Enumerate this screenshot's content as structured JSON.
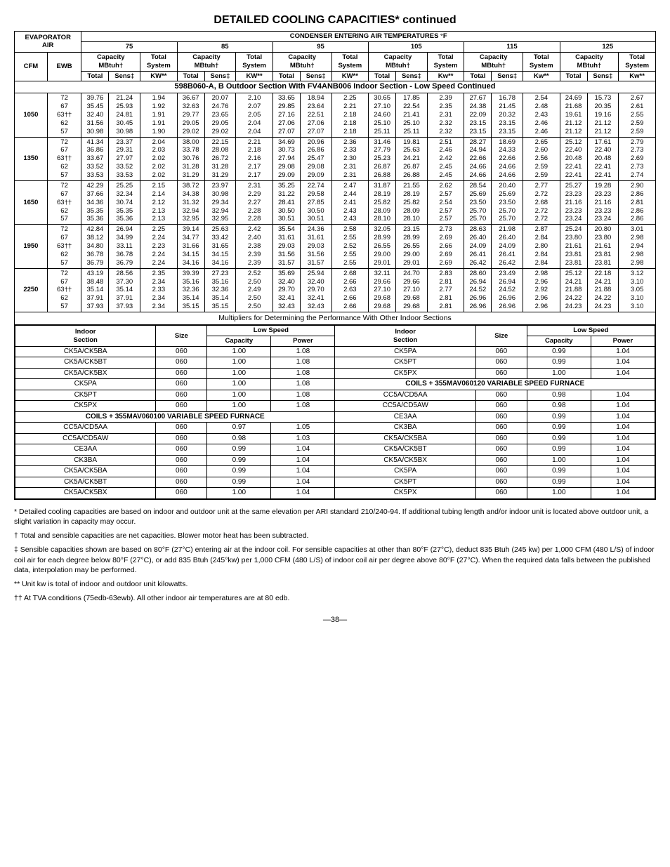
{
  "title": "DETAILED COOLING CAPACITIES* continued",
  "headers": {
    "evaporator": "EVAPORATOR",
    "air": "AIR",
    "cond_temps": "CONDENSER ENTERING AIR TEMPERATURES °F",
    "temp_cols": [
      "75",
      "85",
      "95",
      "105",
      "115",
      "125"
    ],
    "capacity": "Capacity",
    "mbtuh": "MBtuh†",
    "total": "Total",
    "system": "System",
    "sens": "Sens‡",
    "kw": "KW**",
    "kw_lc": "Kw**",
    "cfm": "CFM",
    "ewb": "EWB"
  },
  "banner": "598B060-A, B Outdoor Section With FV4ANB006 Indoor Section - Low Speed Continued",
  "cfm_groups": [
    "1050",
    "1350",
    "1650",
    "1950",
    "2250"
  ],
  "ewb_labels": [
    "72",
    "67",
    "63††",
    "62",
    "57"
  ],
  "data": {
    "1050": [
      [
        "39.76",
        "21.24",
        "1.94",
        "36.67",
        "20.07",
        "2.10",
        "33.65",
        "18.94",
        "2.25",
        "30.65",
        "17.85",
        "2.39",
        "27.67",
        "16.78",
        "2.54",
        "24.69",
        "15.73",
        "2.67"
      ],
      [
        "35.45",
        "25.93",
        "1.92",
        "32.63",
        "24.76",
        "2.07",
        "29.85",
        "23.64",
        "2.21",
        "27.10",
        "22.54",
        "2.35",
        "24.38",
        "21.45",
        "2.48",
        "21.68",
        "20.35",
        "2.61"
      ],
      [
        "32.40",
        "24.81",
        "1.91",
        "29.77",
        "23.65",
        "2.05",
        "27.16",
        "22.51",
        "2.18",
        "24.60",
        "21.41",
        "2.31",
        "22.09",
        "20.32",
        "2.43",
        "19.61",
        "19.16",
        "2.55"
      ],
      [
        "31.56",
        "30.45",
        "1.91",
        "29.05",
        "29.05",
        "2.04",
        "27.06",
        "27.06",
        "2.18",
        "25.10",
        "25.10",
        "2.32",
        "23.15",
        "23.15",
        "2.46",
        "21.12",
        "21.12",
        "2.59"
      ],
      [
        "30.98",
        "30.98",
        "1.90",
        "29.02",
        "29.02",
        "2.04",
        "27.07",
        "27.07",
        "2.18",
        "25.11",
        "25.11",
        "2.32",
        "23.15",
        "23.15",
        "2.46",
        "21.12",
        "21.12",
        "2.59"
      ]
    ],
    "1350": [
      [
        "41.34",
        "23.37",
        "2.04",
        "38.00",
        "22.15",
        "2.21",
        "34.69",
        "20.96",
        "2.36",
        "31.46",
        "19.81",
        "2.51",
        "28.27",
        "18.69",
        "2.65",
        "25.12",
        "17.61",
        "2.79"
      ],
      [
        "36.86",
        "29.31",
        "2.03",
        "33.78",
        "28.08",
        "2.18",
        "30.73",
        "26.86",
        "2.33",
        "27.79",
        "25.63",
        "2.46",
        "24.94",
        "24.33",
        "2.60",
        "22.40",
        "22.40",
        "2.73"
      ],
      [
        "33.67",
        "27.97",
        "2.02",
        "30.76",
        "26.72",
        "2.16",
        "27.94",
        "25.47",
        "2.30",
        "25.23",
        "24.21",
        "2.42",
        "22.66",
        "22.66",
        "2.56",
        "20.48",
        "20.48",
        "2.69"
      ],
      [
        "33.52",
        "33.52",
        "2.02",
        "31.28",
        "31.28",
        "2.17",
        "29.08",
        "29.08",
        "2.31",
        "26.87",
        "26.87",
        "2.45",
        "24.66",
        "24.66",
        "2.59",
        "22.41",
        "22.41",
        "2.73"
      ],
      [
        "33.53",
        "33.53",
        "2.02",
        "31.29",
        "31.29",
        "2.17",
        "29.09",
        "29.09",
        "2.31",
        "26.88",
        "26.88",
        "2.45",
        "24.66",
        "24.66",
        "2.59",
        "22.41",
        "22.41",
        "2.74"
      ]
    ],
    "1650": [
      [
        "42.29",
        "25.25",
        "2.15",
        "38.72",
        "23.97",
        "2.31",
        "35.25",
        "22.74",
        "2.47",
        "31.87",
        "21.55",
        "2.62",
        "28.54",
        "20.40",
        "2.77",
        "25.27",
        "19.28",
        "2.90"
      ],
      [
        "37.66",
        "32.34",
        "2.14",
        "34.38",
        "30.98",
        "2.29",
        "31.22",
        "29.58",
        "2.44",
        "28.19",
        "28.19",
        "2.57",
        "25.69",
        "25.69",
        "2.72",
        "23.23",
        "23.23",
        "2.86"
      ],
      [
        "34.36",
        "30.74",
        "2.12",
        "31.32",
        "29.34",
        "2.27",
        "28.41",
        "27.85",
        "2.41",
        "25.82",
        "25.82",
        "2.54",
        "23.50",
        "23.50",
        "2.68",
        "21.16",
        "21.16",
        "2.81"
      ],
      [
        "35.35",
        "35.35",
        "2.13",
        "32.94",
        "32.94",
        "2.28",
        "30.50",
        "30.50",
        "2.43",
        "28.09",
        "28.09",
        "2.57",
        "25.70",
        "25.70",
        "2.72",
        "23.23",
        "23.23",
        "2.86"
      ],
      [
        "35.36",
        "35.36",
        "2.13",
        "32.95",
        "32.95",
        "2.28",
        "30.51",
        "30.51",
        "2.43",
        "28.10",
        "28.10",
        "2.57",
        "25.70",
        "25.70",
        "2.72",
        "23.24",
        "23.24",
        "2.86"
      ]
    ],
    "1950": [
      [
        "42.84",
        "26.94",
        "2.25",
        "39.14",
        "25.63",
        "2.42",
        "35.54",
        "24.36",
        "2.58",
        "32.05",
        "23.15",
        "2.73",
        "28.63",
        "21.98",
        "2.87",
        "25.24",
        "20.80",
        "3.01"
      ],
      [
        "38.12",
        "34.99",
        "2.24",
        "34.77",
        "33.42",
        "2.40",
        "31.61",
        "31.61",
        "2.55",
        "28.99",
        "28.99",
        "2.69",
        "26.40",
        "26.40",
        "2.84",
        "23.80",
        "23.80",
        "2.98"
      ],
      [
        "34.80",
        "33.11",
        "2.23",
        "31.66",
        "31.65",
        "2.38",
        "29.03",
        "29.03",
        "2.52",
        "26.55",
        "26.55",
        "2.66",
        "24.09",
        "24.09",
        "2.80",
        "21.61",
        "21.61",
        "2.94"
      ],
      [
        "36.78",
        "36.78",
        "2.24",
        "34.15",
        "34.15",
        "2.39",
        "31.56",
        "31.56",
        "2.55",
        "29.00",
        "29.00",
        "2.69",
        "26.41",
        "26.41",
        "2.84",
        "23.81",
        "23.81",
        "2.98"
      ],
      [
        "36.79",
        "36.79",
        "2.24",
        "34.16",
        "34.16",
        "2.39",
        "31.57",
        "31.57",
        "2.55",
        "29.01",
        "29.01",
        "2.69",
        "26.42",
        "26.42",
        "2.84",
        "23.81",
        "23.81",
        "2.98"
      ]
    ],
    "2250": [
      [
        "43.19",
        "28.56",
        "2.35",
        "39.39",
        "27.23",
        "2.52",
        "35.69",
        "25.94",
        "2.68",
        "32.11",
        "24.70",
        "2.83",
        "28.60",
        "23.49",
        "2.98",
        "25.12",
        "22.18",
        "3.12"
      ],
      [
        "38.48",
        "37.30",
        "2.34",
        "35.16",
        "35.16",
        "2.50",
        "32.40",
        "32.40",
        "2.66",
        "29.66",
        "29.66",
        "2.81",
        "26.94",
        "26.94",
        "2.96",
        "24.21",
        "24.21",
        "3.10"
      ],
      [
        "35.14",
        "35.14",
        "2.33",
        "32.36",
        "32.36",
        "2.49",
        "29.70",
        "29.70",
        "2.63",
        "27.10",
        "27.10",
        "2.77",
        "24.52",
        "24.52",
        "2.92",
        "21.88",
        "21.88",
        "3.05"
      ],
      [
        "37.91",
        "37.91",
        "2.34",
        "35.14",
        "35.14",
        "2.50",
        "32.41",
        "32.41",
        "2.66",
        "29.68",
        "29.68",
        "2.81",
        "26.96",
        "26.96",
        "2.96",
        "24.22",
        "24.22",
        "3.10"
      ],
      [
        "37.93",
        "37.93",
        "2.34",
        "35.15",
        "35.15",
        "2.50",
        "32.43",
        "32.43",
        "2.66",
        "29.68",
        "29.68",
        "2.81",
        "26.96",
        "26.96",
        "2.96",
        "24.23",
        "24.23",
        "3.10"
      ]
    ]
  },
  "multipliers_title": "Multipliers for Determining the Performance With Other Indoor Sections",
  "mult_headers": {
    "indoor": "Indoor",
    "section": "Section",
    "size": "Size",
    "capacity": "Capacity",
    "low_speed": "Low Speed",
    "power": "Power"
  },
  "furnace_banner_left": "COILS + 355MAV060100 VARIABLE SPEED FURNACE",
  "furnace_banner_right": "COILS + 355MAV060120 VARIABLE SPEED FURNACE",
  "mult_left": [
    [
      "CK5A/CK5BA",
      "060",
      "1.00",
      "1.08"
    ],
    [
      "CK5A/CK5BT",
      "060",
      "1.00",
      "1.08"
    ],
    [
      "CK5A/CK5BX",
      "060",
      "1.00",
      "1.08"
    ],
    [
      "CK5PA",
      "060",
      "1.00",
      "1.08"
    ],
    [
      "CK5PT",
      "060",
      "1.00",
      "1.08"
    ],
    [
      "CK5PX",
      "060",
      "1.00",
      "1.08"
    ],
    [
      "CC5A/CD5AA",
      "060",
      "0.97",
      "1.05"
    ],
    [
      "CC5A/CD5AW",
      "060",
      "0.98",
      "1.03"
    ],
    [
      "CE3AA",
      "060",
      "0.99",
      "1.04"
    ],
    [
      "CK3BA",
      "060",
      "0.99",
      "1.04"
    ],
    [
      "CK5A/CK5BA",
      "060",
      "0.99",
      "1.04"
    ],
    [
      "CK5A/CK5BT",
      "060",
      "0.99",
      "1.04"
    ],
    [
      "CK5A/CK5BX",
      "060",
      "1.00",
      "1.04"
    ]
  ],
  "mult_right": [
    [
      "CK5PA",
      "060",
      "0.99",
      "1.04"
    ],
    [
      "CK5PT",
      "060",
      "0.99",
      "1.04"
    ],
    [
      "CK5PX",
      "060",
      "1.00",
      "1.04"
    ],
    [
      "CC5A/CD5AA",
      "060",
      "0.98",
      "1.04"
    ],
    [
      "CC5A/CD5AW",
      "060",
      "0.98",
      "1.04"
    ],
    [
      "CE3AA",
      "060",
      "0.99",
      "1.04"
    ],
    [
      "CK3BA",
      "060",
      "0.99",
      "1.04"
    ],
    [
      "CK5A/CK5BA",
      "060",
      "0.99",
      "1.04"
    ],
    [
      "CK5A/CK5BT",
      "060",
      "0.99",
      "1.04"
    ],
    [
      "CK5A/CK5BX",
      "060",
      "1.00",
      "1.04"
    ],
    [
      "CK5PA",
      "060",
      "0.99",
      "1.04"
    ],
    [
      "CK5PT",
      "060",
      "0.99",
      "1.04"
    ],
    [
      "CK5PX",
      "060",
      "1.00",
      "1.04"
    ]
  ],
  "footnotes": {
    "star": "* Detailed cooling capacities are based on indoor and outdoor unit at the same elevation per ARI standard 210/240-94. If additional tubing length and/or indoor unit is located above outdoor unit, a slight variation in capacity may occur.",
    "dag": "† Total and sensible capacities are net capacities. Blower motor heat has been subtracted.",
    "ddag": "‡ Sensible capacities shown are based on 80°F (27°C) entering air at the indoor coil. For sensible capacities at other than 80°F (27°C), deduct 835 Btuh (245 kw) per 1,000 CFM (480 L/S) of indoor coil air for each degree below 80°F (27°C), or add 835 Btuh (245°kw) per 1,000 CFM (480 L/S) of indoor coil air per degree above 80°F (27°C). When the required data falls between the published data, interpolation may be performed.",
    "dstar": "** Unit kw is total of indoor and outdoor unit kilowatts.",
    "ddag2": "†† At TVA conditions (75edb-63ewb). All other indoor air temperatures are at 80 edb."
  },
  "page": "—38—"
}
